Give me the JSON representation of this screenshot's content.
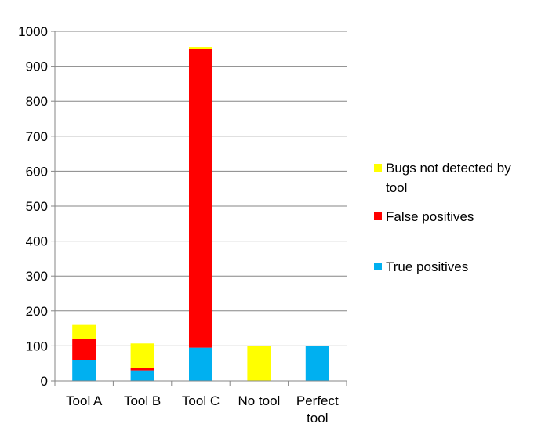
{
  "chart_data": {
    "type": "bar",
    "stacked": true,
    "title": "",
    "xlabel": "",
    "ylabel": "",
    "ylim": [
      0,
      1000
    ],
    "yticks": [
      0,
      100,
      200,
      300,
      400,
      500,
      600,
      700,
      800,
      900,
      1000
    ],
    "grid": true,
    "legend_position": "right",
    "categories": [
      [
        "Tool A"
      ],
      [
        "Tool B"
      ],
      [
        "Tool C"
      ],
      [
        "No tool"
      ],
      [
        "Perfect",
        "tool"
      ]
    ],
    "series": [
      {
        "name": "True positives",
        "color": "#00B0F0",
        "values": [
          60,
          30,
          95,
          0,
          100
        ]
      },
      {
        "name": "False positives",
        "color": "#FF0000",
        "values": [
          60,
          7,
          855,
          0,
          0
        ]
      },
      {
        "name": "Bugs not detected by tool",
        "color": "#FFFF00",
        "values": [
          40,
          70,
          5,
          100,
          0
        ]
      }
    ],
    "legend": [
      {
        "lines": [
          "Bugs not detected by",
          "tool"
        ],
        "color": "#FFFF00"
      },
      {
        "lines": [
          "False positives"
        ],
        "color": "#FF0000"
      },
      {
        "lines": [
          "True positives"
        ],
        "color": "#00B0F0"
      }
    ]
  }
}
